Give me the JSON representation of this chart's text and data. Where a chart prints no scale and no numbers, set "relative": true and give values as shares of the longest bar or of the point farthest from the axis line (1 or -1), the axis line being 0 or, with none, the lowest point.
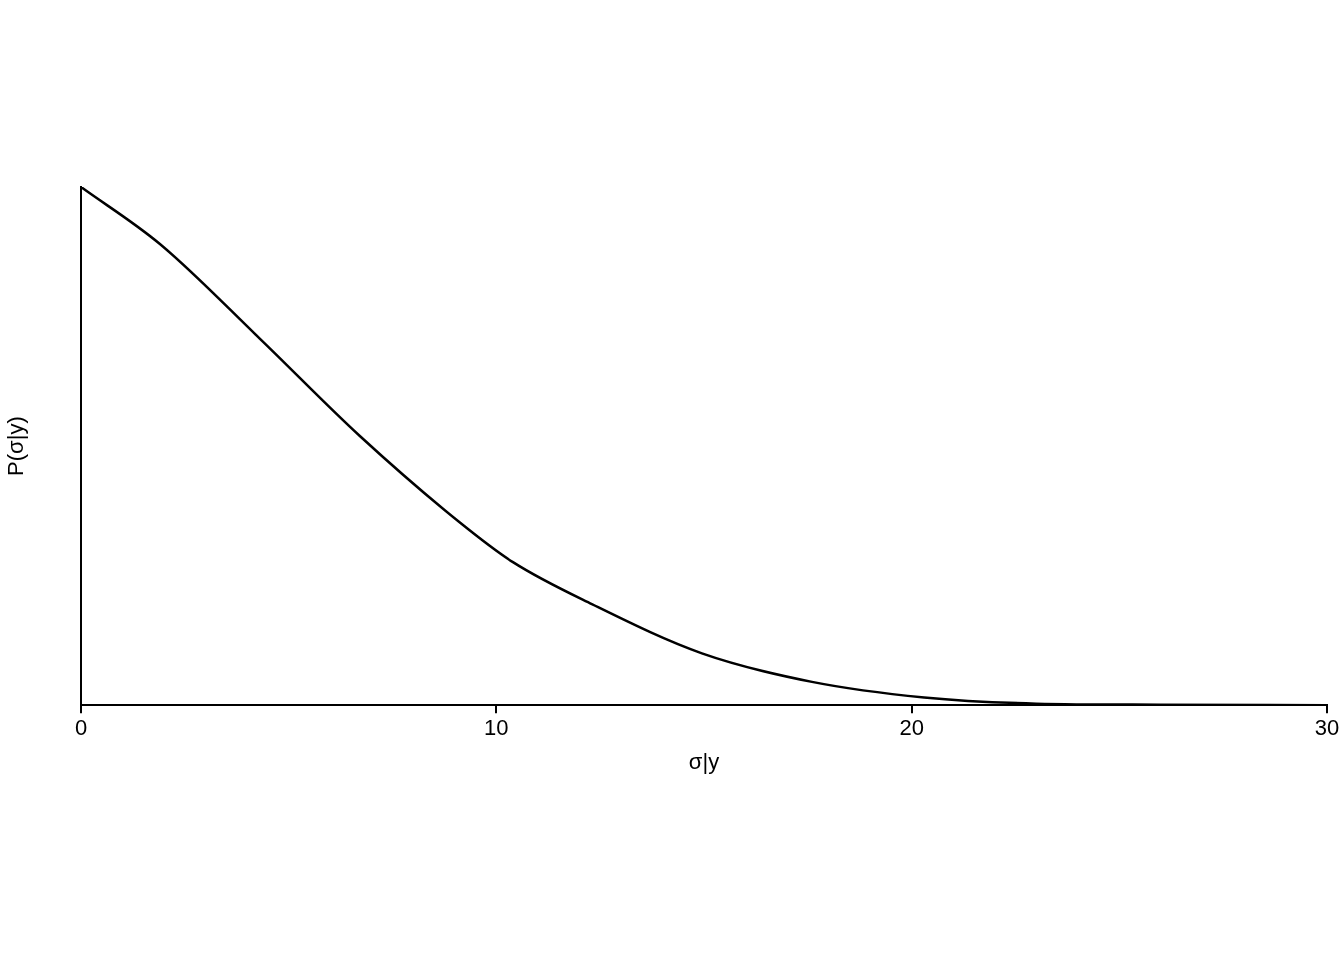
{
  "chart_data": {
    "type": "line",
    "xlabel": "σ|y",
    "ylabel": "P(σ|y)",
    "relative": true,
    "xlim": [
      0,
      30
    ],
    "xticks": [
      0,
      10,
      20,
      30
    ],
    "grid": false,
    "legend": false,
    "marker": "none",
    "line_style": "solid",
    "series": [
      {
        "color": "#000000",
        "x": [
          0,
          1.9,
          4.31,
          6.72,
          9.13,
          10.4,
          12.3,
          14.95,
          17.6,
          20.3,
          23,
          26,
          30
        ],
        "values": [
          1,
          0.89,
          0.707,
          0.519,
          0.352,
          0.276,
          0.195,
          0.1,
          0.045,
          0.015,
          0.003,
          0.001,
          0
        ]
      }
    ]
  }
}
